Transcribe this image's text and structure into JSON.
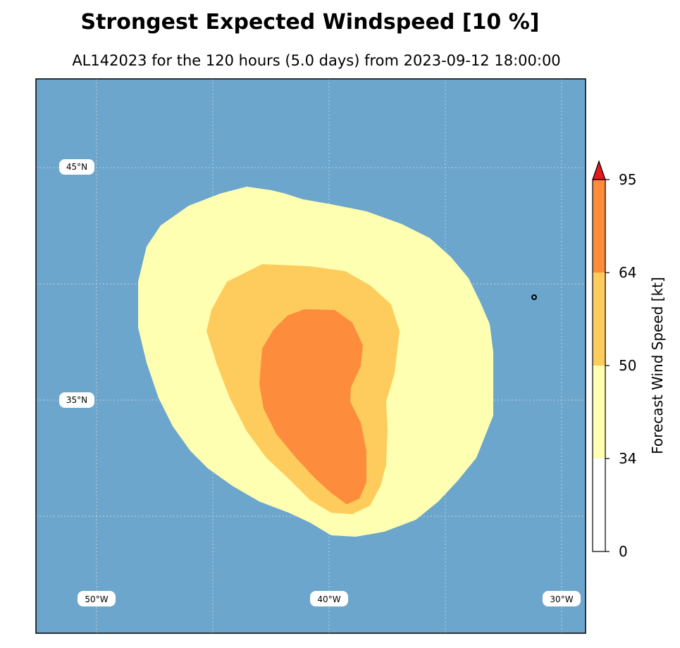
{
  "title": "Strongest Expected Windspeed [10 %]",
  "subtitle": "AL142023 for the 120 hours (5.0 days) from 2023-09-12 18:00:00",
  "map": {
    "lat_labels": [
      "45°N",
      "35°N"
    ],
    "lon_labels": [
      "50°W",
      "40°W",
      "30°W"
    ],
    "ocean_color": "#6ca6cc",
    "point_marker": "storm-location-marker"
  },
  "colorbar": {
    "label": "Forecast Wind Speed [kt]",
    "ticks": [
      "0",
      "34",
      "50",
      "64",
      "95"
    ],
    "bands": [
      {
        "range": "0-34",
        "color": "#ffffff"
      },
      {
        "range": "34-50",
        "color": "#ffffb2"
      },
      {
        "range": "50-64",
        "color": "#fecc5c"
      },
      {
        "range": "64-95",
        "color": "#fd8d3c"
      },
      {
        "range": ">95",
        "color": "#e31a1c"
      }
    ]
  }
}
